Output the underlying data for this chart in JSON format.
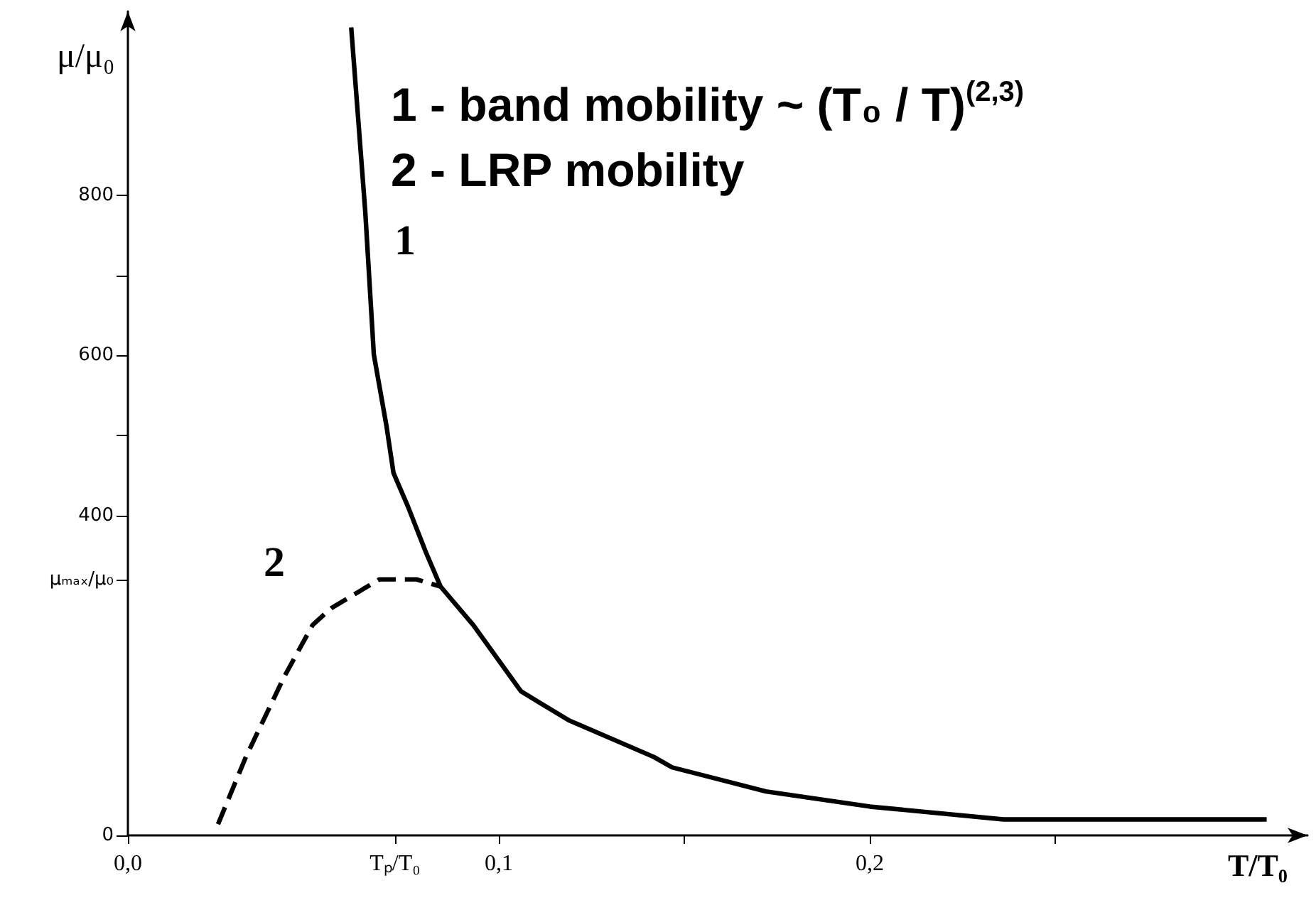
{
  "chart_data": {
    "type": "line",
    "xlabel": "T/T₀",
    "ylabel": "μ/μ₀",
    "annotations": [
      "1 - band mobility ~ (T₀ / T)$^{(2,3)}$",
      "2 - LRP mobility"
    ],
    "xlim": [
      0,
      0.318
    ],
    "ylim": [
      0,
      1030
    ],
    "xticks": [
      {
        "value": 0,
        "label": "0,0"
      },
      {
        "value": 0.072,
        "label": "Tₚ/T₀"
      },
      {
        "value": 0.1,
        "label": "0,1"
      },
      {
        "value": 0.15,
        "label": null
      },
      {
        "value": 0.2,
        "label": "0,2"
      },
      {
        "value": 0.25,
        "label": null
      }
    ],
    "yticks": [
      0,
      {
        "value": 320,
        "label": "μₘₐₓ/μ₀"
      },
      400,
      {
        "value": 500,
        "label": null
      },
      600,
      {
        "value": 700,
        "label": null
      },
      800
    ],
    "grid": false,
    "marker": "none",
    "series": [
      {
        "name": "1",
        "color": "#000000",
        "line_style": "solid",
        "x": [
          0.0602,
          0.064,
          0.0663,
          0.0697,
          0.0716,
          0.0755,
          0.0805,
          0.0843,
          0.0931,
          0.106,
          0.1188,
          0.1418,
          0.1467,
          0.172,
          0.2,
          0.236,
          0.307
        ],
        "values": [
          1010,
          779,
          601,
          512,
          453,
          411,
          352,
          311,
          263,
          180,
          144,
          98,
          85,
          55,
          36,
          20,
          20
        ]
      },
      {
        "name": "2",
        "color": "#000000",
        "line_style": "dashed",
        "x": [
          0.0243,
          0.0318,
          0.0421,
          0.0498,
          0.0548,
          0.0678,
          0.0778,
          0.0843
        ],
        "values": [
          14,
          98,
          198,
          263,
          284,
          320,
          320,
          311
        ]
      }
    ]
  }
}
